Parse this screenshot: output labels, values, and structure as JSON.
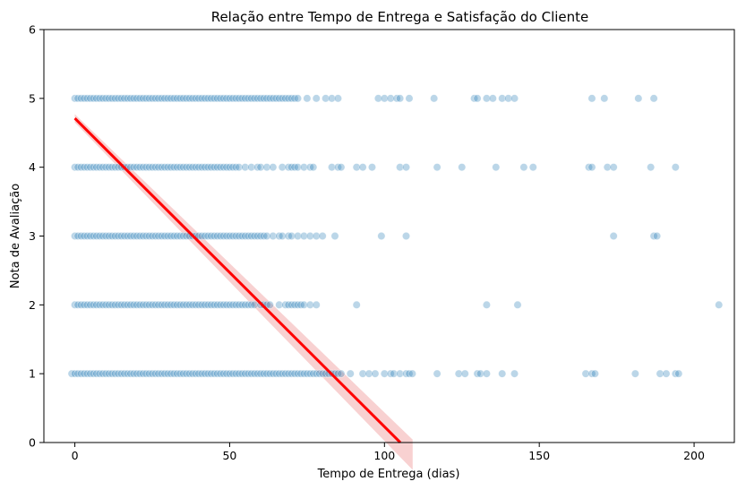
{
  "chart_data": {
    "type": "scatter",
    "title": "Relação entre Tempo de Entrega e Satisfação do Cliente",
    "xlabel": "Tempo de Entrega (dias)",
    "ylabel": "Nota de Avaliação",
    "xlim": [
      -10,
      213
    ],
    "ylim": [
      0,
      6
    ],
    "xticks": [
      "0",
      "50",
      "100",
      "150",
      "200"
    ],
    "yticks": [
      "0",
      "1",
      "2",
      "3",
      "4",
      "5",
      "6"
    ],
    "grid": false,
    "point_color": "#1f77b4",
    "point_alpha": 0.3,
    "regression": {
      "color": "#ff0000",
      "intercept": 4.71,
      "slope": -0.0448,
      "x_range": [
        0,
        105.1
      ],
      "ci_color": "#f4b3b3"
    },
    "series": [
      {
        "values": [
          {
            "y": 5,
            "x": [
              0,
              1,
              2,
              3,
              4,
              5,
              6,
              7,
              8,
              9,
              10,
              11,
              12,
              13,
              14,
              15,
              16,
              17,
              18,
              19,
              20,
              21,
              22,
              23,
              24,
              25,
              26,
              27,
              28,
              29,
              30,
              31,
              32,
              33,
              34,
              35,
              36,
              37,
              38,
              39,
              40,
              41,
              42,
              43,
              44,
              45,
              46,
              47,
              48,
              49,
              50,
              51,
              52,
              53,
              54,
              55,
              56,
              57,
              58,
              59,
              60,
              61,
              62,
              63,
              64,
              65,
              66,
              67,
              68,
              69,
              70,
              71,
              72,
              75,
              78,
              81,
              83,
              85,
              98,
              100,
              102,
              104,
              105,
              108,
              116,
              129,
              130,
              133,
              135,
              138,
              140,
              142,
              167,
              171,
              182,
              187
            ]
          },
          {
            "y": 4,
            "x": [
              0,
              1,
              2,
              3,
              4,
              5,
              6,
              7,
              8,
              9,
              10,
              11,
              12,
              13,
              14,
              15,
              16,
              17,
              18,
              19,
              20,
              21,
              22,
              23,
              24,
              25,
              26,
              27,
              28,
              29,
              30,
              31,
              32,
              33,
              34,
              35,
              36,
              37,
              38,
              39,
              40,
              41,
              42,
              43,
              44,
              45,
              46,
              47,
              48,
              49,
              50,
              51,
              52,
              53,
              55,
              57,
              59,
              60,
              62,
              64,
              67,
              69,
              70,
              71,
              72,
              74,
              76,
              77,
              83,
              85,
              86,
              91,
              93,
              96,
              105,
              107,
              117,
              125,
              136,
              145,
              148,
              166,
              167,
              172,
              174,
              186,
              194
            ]
          },
          {
            "y": 3,
            "x": [
              0,
              1,
              2,
              3,
              4,
              5,
              6,
              7,
              8,
              9,
              10,
              11,
              12,
              13,
              14,
              15,
              16,
              17,
              18,
              19,
              20,
              21,
              22,
              23,
              24,
              25,
              26,
              27,
              28,
              29,
              30,
              31,
              32,
              33,
              34,
              35,
              36,
              37,
              38,
              39,
              40,
              41,
              42,
              43,
              44,
              45,
              46,
              47,
              48,
              49,
              50,
              51,
              52,
              53,
              54,
              55,
              56,
              57,
              58,
              59,
              60,
              61,
              62,
              64,
              66,
              67,
              69,
              70,
              72,
              74,
              76,
              78,
              80,
              84,
              99,
              107,
              174,
              187,
              188
            ]
          },
          {
            "y": 2,
            "x": [
              0,
              1,
              2,
              3,
              4,
              5,
              6,
              7,
              8,
              9,
              10,
              11,
              12,
              13,
              14,
              15,
              16,
              17,
              18,
              19,
              20,
              21,
              22,
              23,
              24,
              25,
              26,
              27,
              28,
              29,
              30,
              31,
              32,
              33,
              34,
              35,
              36,
              37,
              38,
              39,
              40,
              41,
              42,
              43,
              44,
              45,
              46,
              47,
              48,
              49,
              50,
              51,
              52,
              53,
              54,
              55,
              56,
              57,
              58,
              60,
              61,
              62,
              63,
              66,
              68,
              69,
              70,
              71,
              72,
              73,
              74,
              76,
              78,
              91,
              133,
              143,
              208
            ]
          },
          {
            "y": 1,
            "x": [
              -1,
              0,
              1,
              2,
              3,
              4,
              5,
              6,
              7,
              8,
              9,
              10,
              11,
              12,
              13,
              14,
              15,
              16,
              17,
              18,
              19,
              20,
              21,
              22,
              23,
              24,
              25,
              26,
              27,
              28,
              29,
              30,
              31,
              32,
              33,
              34,
              35,
              36,
              37,
              38,
              39,
              40,
              41,
              42,
              43,
              44,
              45,
              46,
              47,
              48,
              49,
              50,
              51,
              52,
              53,
              54,
              55,
              56,
              57,
              58,
              59,
              60,
              61,
              62,
              63,
              64,
              65,
              66,
              67,
              68,
              69,
              70,
              71,
              72,
              73,
              74,
              75,
              76,
              77,
              78,
              79,
              80,
              81,
              82,
              83,
              84,
              85,
              86,
              89,
              93,
              95,
              97,
              100,
              102,
              103,
              105,
              107,
              108,
              109,
              117,
              124,
              126,
              130,
              131,
              133,
              138,
              142,
              165,
              167,
              168,
              181,
              189,
              191,
              194,
              195
            ]
          }
        ]
      }
    ]
  }
}
